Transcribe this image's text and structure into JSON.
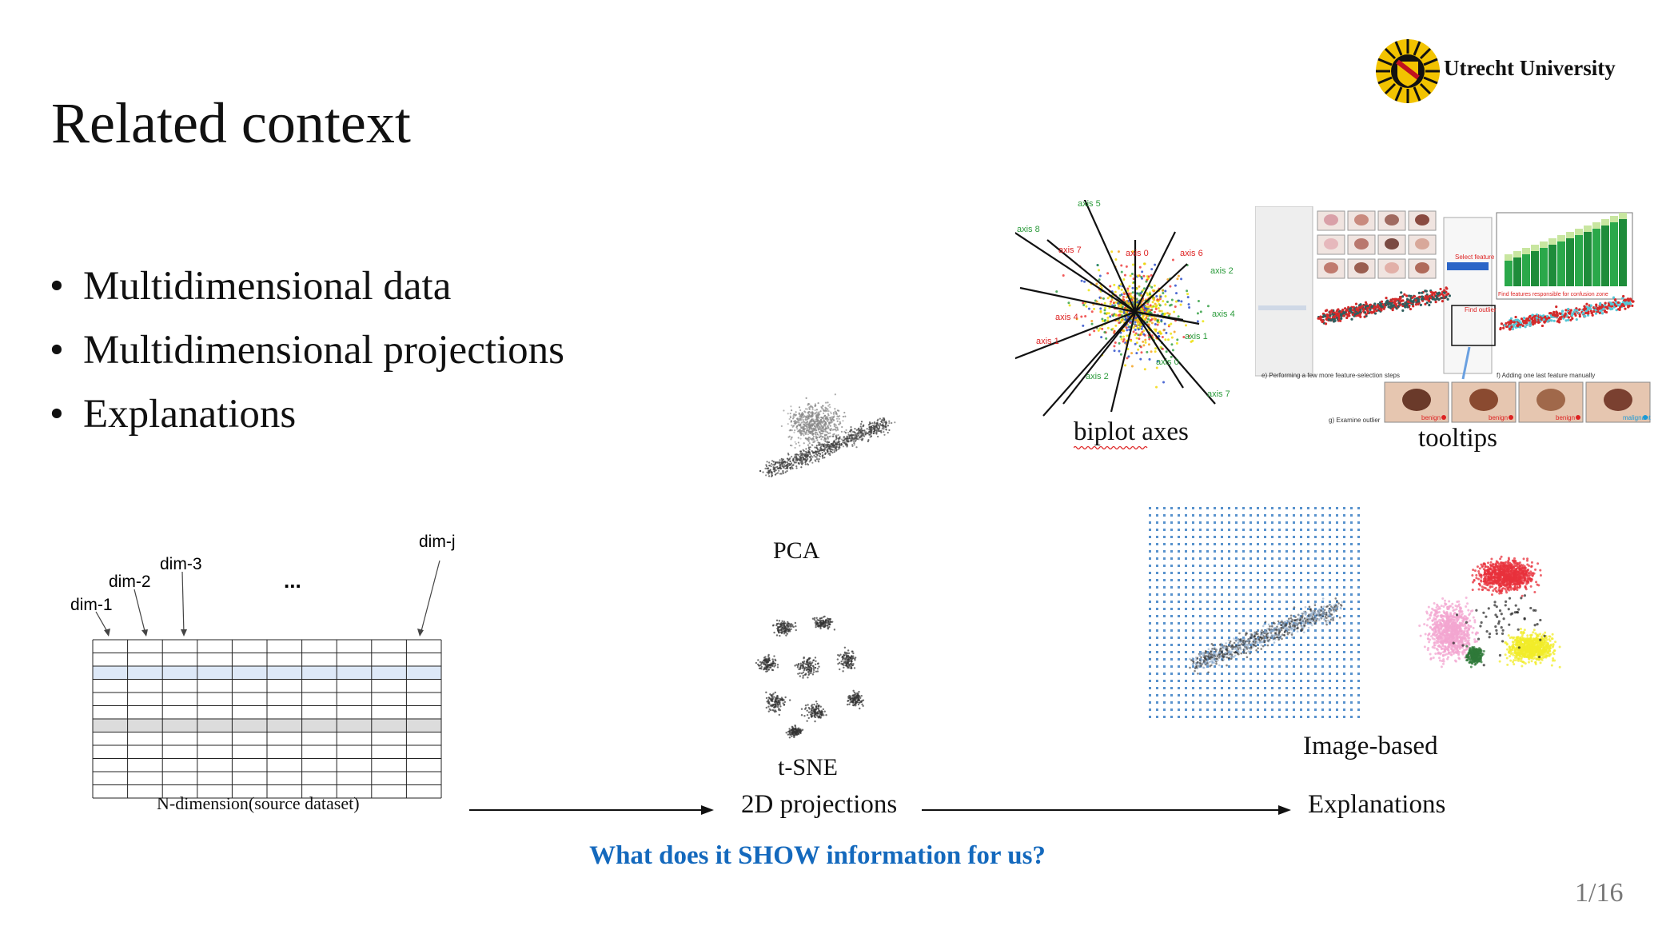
{
  "slide": {
    "title": "Related context",
    "bullets": [
      "Multidimensional data",
      "Multidimensional projections",
      "Explanations"
    ],
    "page_number": "1/16"
  },
  "brand": {
    "name": "Utrecht University"
  },
  "table_figure": {
    "dims": [
      "dim-1",
      "dim-2",
      "dim-3",
      "...",
      "dim-j"
    ],
    "caption": "N-dimension(source dataset)"
  },
  "projections": {
    "pca": "PCA",
    "tsne": "t-SNE",
    "caption": "2D projections"
  },
  "explanations": {
    "biplot": "biplot axes",
    "tooltips": "tooltips",
    "image_based": "Image-based",
    "caption": "Explanations"
  },
  "biplot_axes": [
    "axis 5",
    "axis 8",
    "axis 7",
    "axis 0",
    "axis 6",
    "axis 2",
    "axis 1",
    "axis 4",
    "axis 4",
    "axis 1",
    "axis 2",
    "axis 0",
    "axis 7"
  ],
  "tooltip_figure": {
    "panel_e": "e) Performing a few more feature-selection steps",
    "panel_f": "f) Adding one last feature manually",
    "panel_g": "g) Examine outlier",
    "find_outlier": "Find outlier",
    "select_feature": "Select feature",
    "confusion": "Find features responsible for confusion zone",
    "thumbs": [
      "benign",
      "benign",
      "benign",
      "malignant"
    ]
  },
  "question": "What does it SHOW information for us?",
  "colors": {
    "accent": "#1469bd",
    "page_number": "#777777"
  }
}
